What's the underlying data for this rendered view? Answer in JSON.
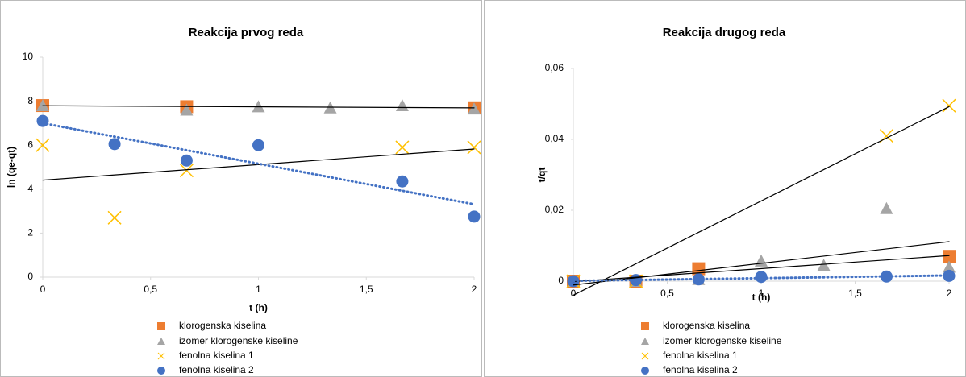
{
  "chart_data": [
    {
      "type": "scatter",
      "title": "Reakcija prvog reda",
      "x_label": "t (h)",
      "y_label": "ln (qe-qt)",
      "xlim": [
        0,
        2
      ],
      "xticks": [
        0,
        {
          "value": 0.5,
          "label": "0,5"
        },
        1,
        {
          "value": 1.5,
          "label": "1,5"
        },
        2
      ],
      "ylim": [
        0,
        10
      ],
      "yticks": [
        0,
        2,
        4,
        6,
        8,
        10
      ],
      "series": [
        {
          "name": "klorogenska kiselina",
          "color": "#ED7D31",
          "marker": "square",
          "trendline": "solid",
          "x": [
            0,
            0.667,
            2
          ],
          "values": [
            7.8,
            7.75,
            7.7
          ]
        },
        {
          "name": "izomer klorogenske kiseline",
          "color": "#A5A5A5",
          "marker": "triangle",
          "trendline": null,
          "x": [
            0,
            0.667,
            1,
            1.333,
            1.667,
            2
          ],
          "values": [
            7.8,
            7.6,
            7.75,
            7.7,
            7.8,
            7.65
          ]
        },
        {
          "name": "fenolna kiselina 1",
          "color": "#FFC000",
          "marker": "x",
          "trendline": "solid",
          "x": [
            0,
            0.333,
            0.667,
            1.667,
            2
          ],
          "values": [
            6.0,
            2.7,
            4.85,
            5.9,
            5.9
          ]
        },
        {
          "name": "fenolna kiselina 2",
          "color": "#4472C4",
          "marker": "circle",
          "trendline": "dotted",
          "x": [
            0,
            0.333,
            0.667,
            1,
            1.667,
            2
          ],
          "values": [
            7.1,
            6.05,
            5.3,
            6.0,
            4.35,
            2.75
          ]
        }
      ]
    },
    {
      "type": "scatter",
      "title": "Reakcija drugog reda",
      "x_label": "t (h)",
      "y_label": "t/qt",
      "xlim": [
        0,
        2
      ],
      "xticks": [
        0,
        {
          "value": 0.5,
          "label": "0,5"
        },
        1,
        {
          "value": 1.5,
          "label": "1,5"
        },
        2
      ],
      "ylim": [
        0,
        0.06
      ],
      "yticks": [
        0,
        {
          "value": 0.02,
          "label": "0,02"
        },
        {
          "value": 0.04,
          "label": "0,04"
        },
        {
          "value": 0.06,
          "label": "0,06"
        }
      ],
      "series": [
        {
          "name": "klorogenska kiselina",
          "color": "#ED7D31",
          "marker": "square",
          "trendline": "solid",
          "x": [
            0,
            0.333,
            0.667,
            2
          ],
          "values": [
            0,
            0,
            0.0035,
            0.007
          ]
        },
        {
          "name": "izomer klorogenske kiseline",
          "color": "#A5A5A5",
          "marker": "triangle",
          "trendline": "solid",
          "x": [
            0,
            0.333,
            0.667,
            1,
            1.333,
            1.667,
            2
          ],
          "values": [
            0,
            0,
            0.0005,
            0.0057,
            0.0045,
            0.0205,
            0.004
          ]
        },
        {
          "name": "fenolna kiselina 1",
          "color": "#FFC000",
          "marker": "x",
          "trendline": "solid",
          "x": [
            0,
            0.333,
            1.667,
            2
          ],
          "values": [
            0,
            0,
            0.041,
            0.0495
          ]
        },
        {
          "name": "fenolna kiselina 2",
          "color": "#4472C4",
          "marker": "circle",
          "trendline": "dotted",
          "x": [
            0,
            0.333,
            0.667,
            1,
            1.667,
            2
          ],
          "values": [
            0,
            0.0003,
            0.0005,
            0.0012,
            0.0013,
            0.0015
          ]
        }
      ]
    }
  ]
}
